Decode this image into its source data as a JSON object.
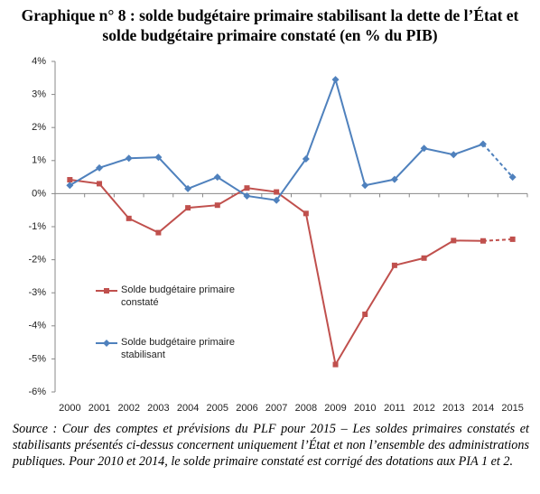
{
  "chart_data": {
    "type": "line",
    "title": "Graphique n° 8 : solde budgétaire primaire stabilisant la dette de l’État et solde budgétaire primaire constaté (en % du PIB)",
    "categories": [
      "2000",
      "2001",
      "2002",
      "2003",
      "2004",
      "2005",
      "2006",
      "2007",
      "2008",
      "2009",
      "2010",
      "2011",
      "2012",
      "2013",
      "2014",
      "2015"
    ],
    "series": [
      {
        "name": "Solde budgétaire primaire constaté",
        "color": "#c0504d",
        "marker": "square",
        "dashed_last_segment": true,
        "values": [
          0.42,
          0.3,
          -0.75,
          -1.18,
          -0.43,
          -0.35,
          0.17,
          0.05,
          -0.6,
          -5.17,
          -3.65,
          -2.17,
          -1.95,
          -1.42,
          -1.43,
          -1.38
        ]
      },
      {
        "name": "Solde budgétaire primaire stabilisant",
        "color": "#4f81bd",
        "marker": "diamond",
        "dashed_last_segment": true,
        "values": [
          0.25,
          0.78,
          1.07,
          1.1,
          0.15,
          0.5,
          -0.07,
          -0.2,
          1.05,
          3.45,
          0.25,
          0.43,
          1.37,
          1.18,
          1.5,
          0.5
        ]
      }
    ],
    "ylim": [
      -6,
      4
    ],
    "yticks": [
      {
        "value": -6,
        "label": "-6%"
      },
      {
        "value": -5,
        "label": "-5%"
      },
      {
        "value": -4,
        "label": "-4%"
      },
      {
        "value": -3,
        "label": "-3%"
      },
      {
        "value": -2,
        "label": "-2%"
      },
      {
        "value": -1,
        "label": "-1%"
      },
      {
        "value": 0,
        "label": "0%"
      },
      {
        "value": 1,
        "label": "1%"
      },
      {
        "value": 2,
        "label": "2%"
      },
      {
        "value": 3,
        "label": "3%"
      },
      {
        "value": 4,
        "label": "4%"
      }
    ],
    "grid": false,
    "source": "Source : Cour des comptes et prévisions du PLF pour 2015 – Les soldes primaires constatés et stabilisants présentés ci-dessus concernent uniquement l’État et non l’ensemble des administrations publiques. Pour 2010 et 2014, le solde primaire constaté est corrigé des dotations aux PIA 1 et 2."
  }
}
